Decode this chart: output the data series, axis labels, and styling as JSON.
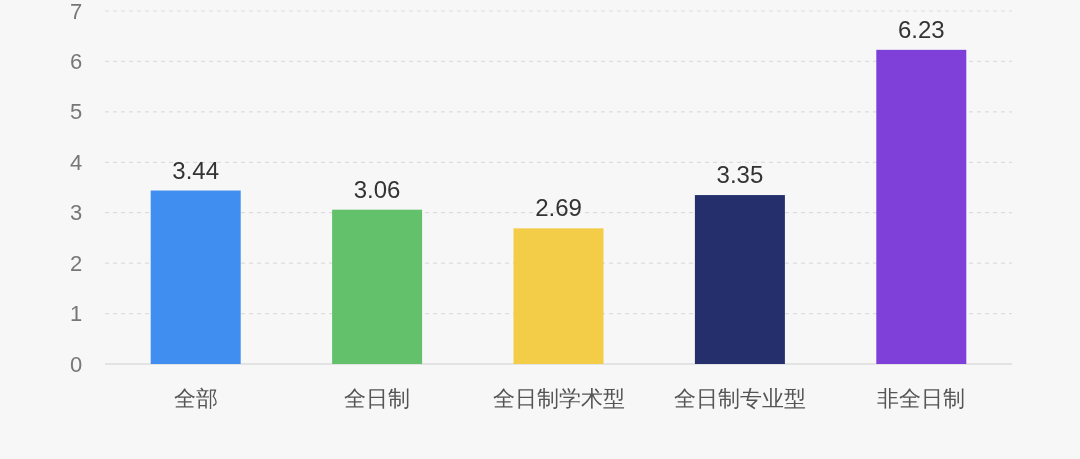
{
  "chart_data": {
    "type": "bar",
    "categories": [
      "全部",
      "全日制",
      "全日制学术型",
      "全日制专业型",
      "非全日制"
    ],
    "values": [
      3.44,
      3.06,
      2.69,
      3.35,
      6.23
    ],
    "colors": [
      "#3f8ef0",
      "#62c16a",
      "#f3cd48",
      "#252f6b",
      "#7e40d8"
    ],
    "ylim": [
      0,
      7
    ],
    "yticks": [
      0,
      1,
      2,
      3,
      4,
      5,
      6,
      7
    ],
    "grid": "y",
    "data_labels": true
  }
}
